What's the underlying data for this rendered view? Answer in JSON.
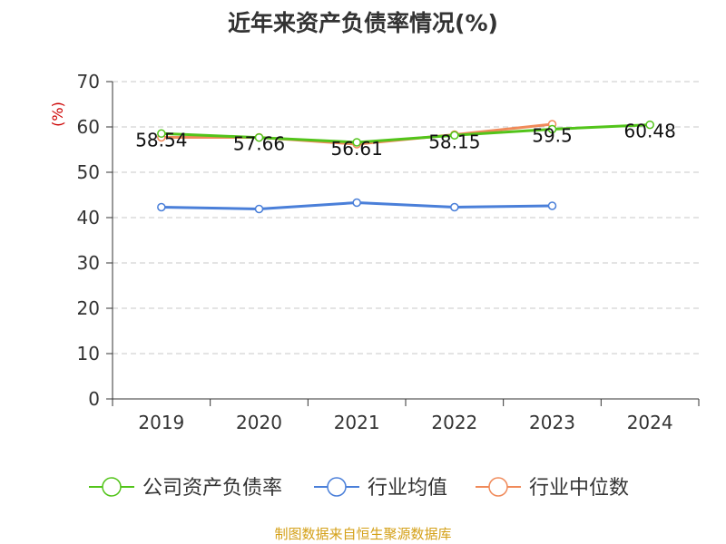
{
  "title": "近年来资产负债率情况(%)",
  "source": "制图数据来自恒生聚源数据库",
  "colors": {
    "company": "#52c41a",
    "industry_avg": "#4a7fd9",
    "industry_median": "#f08a5a",
    "source_text": "#d4a017",
    "ylabel": "#cc0000"
  },
  "chart_data": {
    "type": "line",
    "title": "近年来资产负债率情况(%)",
    "xlabel": "",
    "ylabel": "(%)",
    "categories": [
      "2019",
      "2020",
      "2021",
      "2022",
      "2023",
      "2024"
    ],
    "ylim": [
      0,
      70
    ],
    "yticks": [
      0,
      10,
      20,
      30,
      40,
      50,
      60,
      70
    ],
    "grid": true,
    "legend_position": "bottom",
    "series": [
      {
        "name": "公司资产负债率",
        "key": "company",
        "values": [
          58.54,
          57.66,
          56.61,
          58.15,
          59.5,
          60.48
        ],
        "data_labels": [
          "58.54",
          "57.66",
          "56.61",
          "58.15",
          "59.5",
          "60.48"
        ]
      },
      {
        "name": "行业均值",
        "key": "industry_avg",
        "values": [
          42.3,
          41.9,
          43.3,
          42.3,
          42.6,
          null
        ]
      },
      {
        "name": "行业中位数",
        "key": "industry_median",
        "values": [
          57.7,
          57.7,
          56.2,
          58.3,
          60.6,
          null
        ]
      }
    ]
  }
}
